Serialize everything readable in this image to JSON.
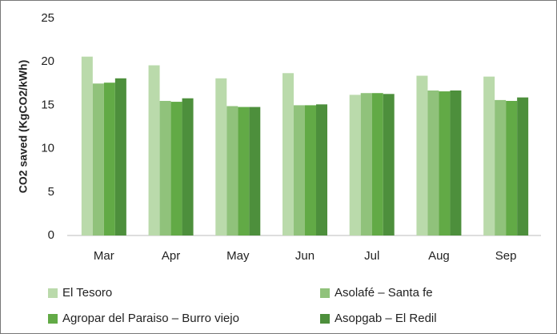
{
  "chart_data": {
    "type": "bar",
    "ylabel": "CO2 saved (KgCO2/kWh)",
    "categories": [
      "Mar",
      "Apr",
      "May",
      "Jun",
      "Jul",
      "Aug",
      "Sep"
    ],
    "series": [
      {
        "name": "El Tesoro",
        "color": "#badaab",
        "values": [
          20.6,
          19.6,
          18.1,
          18.7,
          16.2,
          18.4,
          18.3
        ]
      },
      {
        "name": "Asolafé – Santa fe",
        "color": "#90c27b",
        "values": [
          17.5,
          15.5,
          14.9,
          15.0,
          16.4,
          16.7,
          15.6
        ]
      },
      {
        "name": "Agropar del Paraiso – Burro viejo",
        "color": "#62aa46",
        "values": [
          17.6,
          15.4,
          14.8,
          15.0,
          16.4,
          16.6,
          15.5
        ]
      },
      {
        "name": "Asopgab – El Redil",
        "color": "#4d8f3c",
        "values": [
          18.1,
          15.8,
          14.8,
          15.1,
          16.3,
          16.7,
          15.9
        ]
      }
    ],
    "ylim": [
      0,
      25
    ],
    "yticks": [
      0,
      5,
      10,
      15,
      20,
      25
    ],
    "grid": false
  }
}
